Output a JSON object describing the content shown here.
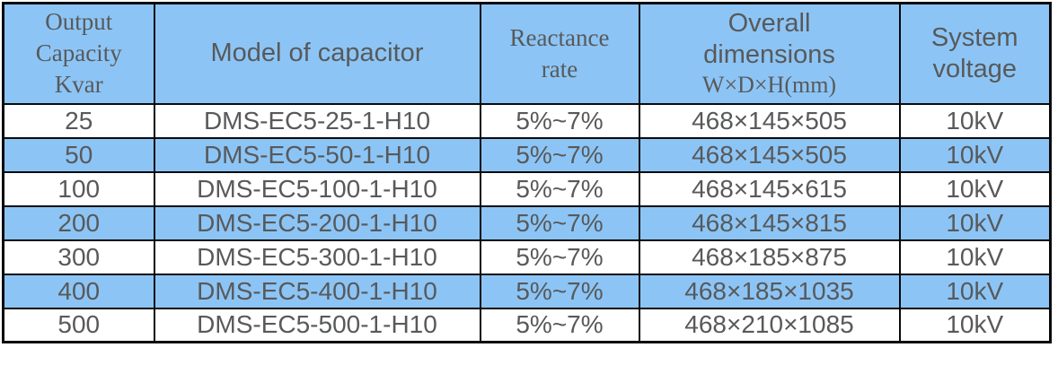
{
  "table": {
    "headers": {
      "capacity": "Output\nCapacity\nKvar",
      "model": "Model of capacitor",
      "reactance": "Reactance\nrate",
      "dimensions_main": "Overall\ndimensions",
      "dimensions_sub": "W×D×H(mm)",
      "voltage": "System\nvoltage"
    },
    "rows": [
      {
        "capacity": "25",
        "model": "DMS-EC5-25-1-H10",
        "reactance": "5%~7%",
        "dimensions": "468×145×505",
        "voltage": "10kV"
      },
      {
        "capacity": "50",
        "model": "DMS-EC5-50-1-H10",
        "reactance": "5%~7%",
        "dimensions": "468×145×505",
        "voltage": "10kV"
      },
      {
        "capacity": "100",
        "model": "DMS-EC5-100-1-H10",
        "reactance": "5%~7%",
        "dimensions": "468×145×615",
        "voltage": "10kV"
      },
      {
        "capacity": "200",
        "model": "DMS-EC5-200-1-H10",
        "reactance": "5%~7%",
        "dimensions": "468×145×815",
        "voltage": "10kV"
      },
      {
        "capacity": "300",
        "model": "DMS-EC5-300-1-H10",
        "reactance": "5%~7%",
        "dimensions": "468×185×875",
        "voltage": "10kV"
      },
      {
        "capacity": "400",
        "model": "DMS-EC5-400-1-H10",
        "reactance": "5%~7%",
        "dimensions": "468×185×1035",
        "voltage": "10kV"
      },
      {
        "capacity": "500",
        "model": "DMS-EC5-500-1-H10",
        "reactance": "5%~7%",
        "dimensions": "468×210×1085",
        "voltage": "10kV"
      }
    ],
    "colors": {
      "stripe_blue": "#8cc5f5",
      "text_gray": "#58595b",
      "border_black": "#0a0a0c"
    }
  }
}
